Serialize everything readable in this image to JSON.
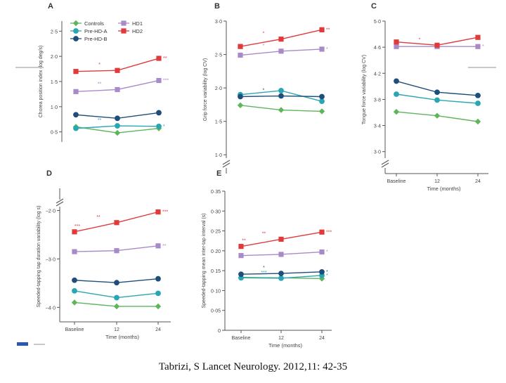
{
  "caption": "Tabrizi, S Lancet Neurology. 2012,11: 42-35",
  "colors": {
    "controls": "#5fb55a",
    "prehd_a": "#2aa6b3",
    "prehd_b": "#1f4e7a",
    "hd1": "#a98ac9",
    "hd2": "#e03a3a",
    "axis": "#555555"
  },
  "legend": [
    {
      "label": "Controls",
      "color": "#5fb55a",
      "marker": "diamond"
    },
    {
      "label": "Pre-HD-A",
      "color": "#2aa6b3",
      "marker": "circle"
    },
    {
      "label": "Pre-HD-B",
      "color": "#1f4e7a",
      "marker": "circle"
    },
    {
      "label": "HD1",
      "color": "#a98ac9",
      "marker": "square"
    },
    {
      "label": "HD2",
      "color": "#e03a3a",
      "marker": "square"
    }
  ],
  "chart_data": [
    {
      "panel": "A",
      "type": "line",
      "ylabel": "Chorea position index (log deg/s)",
      "xlabel": "",
      "ylim": [
        0.3,
        2.7
      ],
      "yticks": [
        0.5,
        1.0,
        1.5,
        2.0,
        2.5
      ],
      "ytick_labels": [
        "0·5",
        "1·0",
        "1·5",
        "2·0",
        "2·5"
      ],
      "break_at_bottom": false,
      "x": [
        0,
        12,
        24
      ],
      "xtick_labels": [],
      "series": [
        {
          "name": "Controls",
          "values": [
            0.6,
            0.48,
            0.57
          ],
          "annotations": [
            "",
            "",
            ""
          ]
        },
        {
          "name": "Pre-HD-A",
          "values": [
            0.57,
            0.62,
            0.61
          ],
          "annotations": [
            "",
            "**",
            "*"
          ]
        },
        {
          "name": "Pre-HD-B",
          "values": [
            0.84,
            0.77,
            0.88
          ],
          "annotations": [
            "",
            "",
            ""
          ]
        },
        {
          "name": "HD1",
          "values": [
            1.3,
            1.34,
            1.52
          ],
          "annotations": [
            "",
            "**",
            "***"
          ]
        },
        {
          "name": "HD2",
          "values": [
            1.7,
            1.72,
            1.96
          ],
          "annotations": [
            "",
            "*",
            "**"
          ]
        }
      ]
    },
    {
      "panel": "B",
      "type": "line",
      "ylabel": "Grip force variability (log CV)",
      "xlabel": "",
      "ylim": [
        0.95,
        3.0
      ],
      "yticks": [
        1.0,
        1.5,
        2.0,
        2.5,
        3.0
      ],
      "ytick_labels": [
        "1·0",
        "1·5",
        "2·0",
        "2·5",
        "3·0"
      ],
      "break_at_bottom": true,
      "x": [
        0,
        12,
        24
      ],
      "xtick_labels": [],
      "series": [
        {
          "name": "Controls",
          "values": [
            1.74,
            1.67,
            1.65
          ],
          "annotations": [
            "",
            "",
            ""
          ]
        },
        {
          "name": "Pre-HD-A",
          "values": [
            1.9,
            1.96,
            1.8
          ],
          "annotations": [
            "",
            "",
            ""
          ]
        },
        {
          "name": "Pre-HD-B",
          "values": [
            1.87,
            1.88,
            1.87
          ],
          "annotations": [
            "",
            "*",
            ""
          ]
        },
        {
          "name": "HD1",
          "values": [
            2.49,
            2.55,
            2.58
          ],
          "annotations": [
            "",
            "*",
            "*"
          ]
        },
        {
          "name": "HD2",
          "values": [
            2.62,
            2.73,
            2.87
          ],
          "annotations": [
            "",
            "*",
            "**"
          ]
        }
      ]
    },
    {
      "panel": "C",
      "type": "line",
      "ylabel": "Tongue force variability (log CV)",
      "xlabel": "Time (months)",
      "ylim": [
        2.9,
        5.0
      ],
      "yticks": [
        3.0,
        3.4,
        3.8,
        4.2,
        4.6,
        5.0
      ],
      "ytick_labels": [
        "3·0",
        "3·4",
        "3·8",
        "4·2",
        "4·6",
        "5·0"
      ],
      "break_at_bottom": true,
      "x": [
        0,
        12,
        24
      ],
      "xtick_labels": [
        "Baseline",
        "12",
        "24"
      ],
      "series": [
        {
          "name": "Controls",
          "values": [
            3.61,
            3.55,
            3.46
          ],
          "annotations": [
            "",
            "",
            ""
          ]
        },
        {
          "name": "Pre-HD-A",
          "values": [
            3.88,
            3.79,
            3.74
          ],
          "annotations": [
            "",
            "",
            ""
          ]
        },
        {
          "name": "Pre-HD-B",
          "values": [
            4.08,
            3.91,
            3.86
          ],
          "annotations": [
            "",
            "",
            ""
          ]
        },
        {
          "name": "HD1",
          "values": [
            4.61,
            4.61,
            4.61
          ],
          "annotations": [
            "",
            "",
            "*"
          ]
        },
        {
          "name": "HD2",
          "values": [
            4.68,
            4.63,
            4.75
          ],
          "annotations": [
            "",
            "*",
            ""
          ]
        }
      ]
    },
    {
      "panel": "D",
      "type": "line",
      "ylabel": "Speeded-tapping tap duration variability (log s)",
      "xlabel": "Time (months)",
      "ylim": [
        -4.3,
        -1.6
      ],
      "yticks": [
        -4.0,
        -3.0,
        -2.0
      ],
      "ytick_labels": [
        "−4·0",
        "−3·0",
        "−2·0"
      ],
      "break_at_top": true,
      "break_at_bottom": false,
      "x": [
        0,
        12,
        24
      ],
      "xtick_labels": [
        "Baseline",
        "12",
        "24"
      ],
      "series": [
        {
          "name": "Controls",
          "values": [
            -3.9,
            -3.98,
            -3.98
          ],
          "annotations": [
            "",
            "",
            ""
          ]
        },
        {
          "name": "Pre-HD-A",
          "values": [
            -3.66,
            -3.8,
            -3.71
          ],
          "annotations": [
            "",
            "",
            ""
          ]
        },
        {
          "name": "Pre-HD-B",
          "values": [
            -3.44,
            -3.49,
            -3.41
          ],
          "annotations": [
            "",
            "",
            ""
          ]
        },
        {
          "name": "HD1",
          "values": [
            -2.85,
            -2.83,
            -2.73
          ],
          "annotations": [
            "",
            "",
            "**"
          ]
        },
        {
          "name": "HD2",
          "values": [
            -2.44,
            -2.25,
            -2.03
          ],
          "annotations": [
            "***",
            "**",
            "***"
          ]
        }
      ]
    },
    {
      "panel": "E",
      "type": "line",
      "ylabel": "Speeded-tapping mean inter-tap interval (s)",
      "xlabel": "Time (months)",
      "ylim": [
        0.0,
        0.35
      ],
      "yticks": [
        0.0,
        0.05,
        0.1,
        0.15,
        0.2,
        0.25,
        0.3,
        0.35
      ],
      "ytick_labels": [
        "0",
        "0·05",
        "0·10",
        "0·15",
        "0·20",
        "0·25",
        "0·30",
        "0·35"
      ],
      "break_at_bottom": false,
      "x": [
        0,
        12,
        24
      ],
      "xtick_labels": [
        "Baseline",
        "12",
        "24"
      ],
      "series": [
        {
          "name": "Controls",
          "values": [
            0.133,
            0.132,
            0.13
          ],
          "annotations": [
            "",
            "",
            ""
          ]
        },
        {
          "name": "Pre-HD-A",
          "values": [
            0.132,
            0.131,
            0.138
          ],
          "annotations": [
            "",
            "***",
            "*"
          ]
        },
        {
          "name": "Pre-HD-B",
          "values": [
            0.141,
            0.143,
            0.147
          ],
          "annotations": [
            "",
            "*",
            "*"
          ]
        },
        {
          "name": "HD1",
          "values": [
            0.188,
            0.191,
            0.197
          ],
          "annotations": [
            "",
            "",
            "*"
          ]
        },
        {
          "name": "HD2",
          "values": [
            0.211,
            0.229,
            0.247
          ],
          "annotations": [
            "**",
            "**",
            "***"
          ]
        }
      ]
    }
  ]
}
